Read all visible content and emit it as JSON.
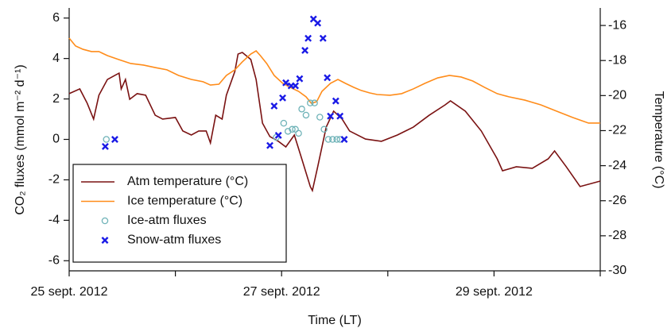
{
  "chart_data": {
    "type": "line",
    "xlabel": "Time (LT)",
    "ylabel": "CO₂ fluxes (mmol m⁻² d⁻¹)",
    "y2label": "Temperature (°C)",
    "xlim": [
      0,
      5
    ],
    "xticks": [
      {
        "value": 0,
        "label": "25 sept. 2012"
      },
      {
        "value": 2,
        "label": "27 sept. 2012"
      },
      {
        "value": 4,
        "label": "29 sept. 2012"
      }
    ],
    "xminorticks": [
      1,
      3,
      5
    ],
    "ylim": [
      -6.5,
      6.5
    ],
    "yticks": [
      -6,
      -4,
      -2,
      0,
      2,
      4,
      6
    ],
    "y2lim": [
      -30,
      -15
    ],
    "y2ticks": [
      -30,
      -28,
      -26,
      -24,
      -22,
      -20,
      -18,
      -16
    ],
    "legend": "lower left",
    "series": [
      {
        "name": "Atm temperature (°C)",
        "type": "line",
        "axis": "y2",
        "color": "#7a1212",
        "x": [
          0,
          0.1,
          0.17,
          0.23,
          0.28,
          0.36,
          0.43,
          0.47,
          0.49,
          0.53,
          0.57,
          0.64,
          0.72,
          0.81,
          0.88,
          1.0,
          1.07,
          1.15,
          1.22,
          1.29,
          1.33,
          1.38,
          1.44,
          1.48,
          1.56,
          1.59,
          1.63,
          1.71,
          1.76,
          1.82,
          1.89,
          1.97,
          2.04,
          2.12,
          2.19,
          2.27,
          2.29,
          2.34,
          2.42,
          2.49,
          2.57,
          2.64,
          2.79,
          2.94,
          3.09,
          3.24,
          3.39,
          3.54,
          3.59,
          3.73,
          3.88,
          4.03,
          4.08,
          4.21,
          4.36,
          4.51,
          4.57,
          4.68,
          4.81,
          5.0
        ],
        "values": [
          -19.89,
          -19.62,
          -20.44,
          -21.34,
          -19.98,
          -19.08,
          -18.85,
          -18.72,
          -19.62,
          -19.08,
          -20.21,
          -19.89,
          -19.98,
          -21.12,
          -21.34,
          -21.25,
          -22.02,
          -22.25,
          -22.02,
          -22.02,
          -22.7,
          -21.12,
          -21.34,
          -19.98,
          -18.62,
          -17.63,
          -17.54,
          -17.94,
          -19.08,
          -21.57,
          -22.34,
          -22.61,
          -22.93,
          -22.25,
          -23.61,
          -25.19,
          -25.42,
          -24.06,
          -21.8,
          -20.89,
          -21.34,
          -22.02,
          -22.48,
          -22.61,
          -22.25,
          -21.8,
          -21.12,
          -20.53,
          -20.3,
          -20.89,
          -22.02,
          -23.61,
          -24.29,
          -24.06,
          -24.15,
          -23.61,
          -23.16,
          -24.06,
          -25.19,
          -24.88
        ]
      },
      {
        "name": "Ice temperature (°C)",
        "type": "line",
        "axis": "y2",
        "color": "#ff8c1a",
        "x": [
          0,
          0.06,
          0.13,
          0.21,
          0.28,
          0.36,
          0.47,
          0.58,
          0.7,
          0.81,
          0.92,
          1.03,
          1.15,
          1.26,
          1.33,
          1.41,
          1.48,
          1.56,
          1.63,
          1.71,
          1.76,
          1.8,
          1.86,
          1.93,
          2.01,
          2.08,
          2.16,
          2.23,
          2.28,
          2.33,
          2.38,
          2.46,
          2.53,
          2.6,
          2.68,
          2.75,
          2.83,
          2.9,
          3.02,
          3.13,
          3.24,
          3.35,
          3.47,
          3.58,
          3.69,
          3.8,
          3.91,
          4.03,
          4.14,
          4.29,
          4.44,
          4.59,
          4.74,
          4.89,
          5.0
        ],
        "values": [
          -16.72,
          -17.17,
          -17.36,
          -17.49,
          -17.49,
          -17.72,
          -17.95,
          -18.17,
          -18.26,
          -18.4,
          -18.53,
          -18.85,
          -19.08,
          -19.21,
          -19.4,
          -19.35,
          -18.85,
          -18.53,
          -18.08,
          -17.63,
          -17.45,
          -17.72,
          -18.17,
          -18.85,
          -19.3,
          -19.53,
          -19.76,
          -20.07,
          -20.44,
          -20.35,
          -19.76,
          -19.3,
          -19.08,
          -19.3,
          -19.53,
          -19.71,
          -19.85,
          -19.94,
          -19.98,
          -19.89,
          -19.62,
          -19.3,
          -18.99,
          -18.85,
          -18.94,
          -19.17,
          -19.53,
          -19.89,
          -20.07,
          -20.26,
          -20.53,
          -20.89,
          -21.25,
          -21.57,
          -21.57
        ]
      },
      {
        "name": "Ice-atm fluxes",
        "type": "scatter",
        "marker": "circle",
        "color": "#6fb3b8",
        "x": [
          0.35,
          1.95,
          2.02,
          2.06,
          2.1,
          2.13,
          2.16,
          2.19,
          2.23,
          2.27,
          2.31,
          2.36,
          2.4,
          2.44,
          2.48,
          2.52,
          2.55
        ],
        "values": [
          0,
          0.1,
          0.8,
          0.4,
          0.5,
          0.5,
          0.3,
          1.5,
          1.2,
          1.8,
          1.8,
          1.1,
          0.5,
          0,
          0,
          0,
          0
        ]
      },
      {
        "name": "Snow-atm fluxes",
        "type": "scatter",
        "marker": "x",
        "color": "#1a1ae6",
        "x": [
          0.34,
          0.43,
          1.89,
          1.93,
          1.97,
          2.01,
          2.04,
          2.09,
          2.13,
          2.17,
          2.22,
          2.25,
          2.3,
          2.34,
          2.39,
          2.43,
          2.46,
          2.51,
          2.55,
          2.59
        ],
        "values": [
          -0.35,
          0,
          -0.3,
          1.65,
          0.2,
          2.05,
          2.8,
          2.65,
          2.65,
          3.0,
          4.4,
          5.0,
          5.95,
          5.75,
          5.0,
          3.05,
          1.15,
          1.9,
          1.15,
          0
        ]
      }
    ]
  }
}
